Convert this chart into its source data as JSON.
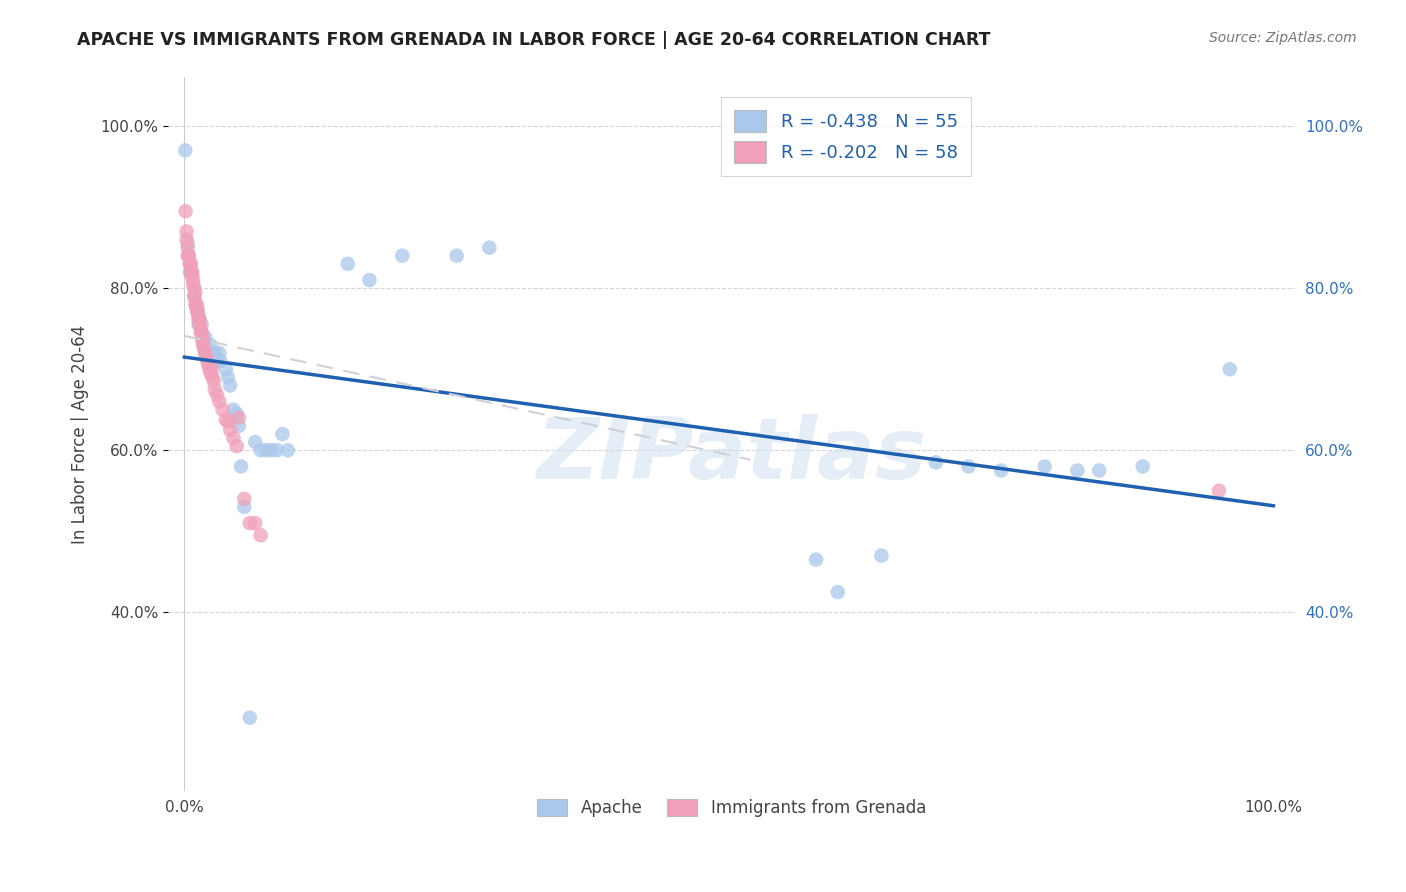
{
  "title": "APACHE VS IMMIGRANTS FROM GRENADA IN LABOR FORCE | AGE 20-64 CORRELATION CHART",
  "source": "Source: ZipAtlas.com",
  "ylabel": "In Labor Force | Age 20-64",
  "watermark": "ZIPatlas",
  "apache_color": "#aac8ea",
  "grenada_color": "#f0a0b8",
  "apache_line_color": "#2060b0",
  "grenada_line_color": "#d0d0d8",
  "apache_scatter": [
    [
      0.0008,
      0.97
    ],
    [
      0.003,
      0.855
    ],
    [
      0.005,
      0.82
    ],
    [
      0.007,
      0.82
    ],
    [
      0.009,
      0.79
    ],
    [
      0.011,
      0.78
    ],
    [
      0.012,
      0.77
    ],
    [
      0.013,
      0.755
    ],
    [
      0.014,
      0.76
    ],
    [
      0.016,
      0.755
    ],
    [
      0.017,
      0.74
    ],
    [
      0.018,
      0.73
    ],
    [
      0.019,
      0.74
    ],
    [
      0.02,
      0.72
    ],
    [
      0.021,
      0.72
    ],
    [
      0.022,
      0.715
    ],
    [
      0.024,
      0.73
    ],
    [
      0.025,
      0.72
    ],
    [
      0.027,
      0.72
    ],
    [
      0.028,
      0.72
    ],
    [
      0.03,
      0.71
    ],
    [
      0.032,
      0.72
    ],
    [
      0.033,
      0.71
    ],
    [
      0.038,
      0.7
    ],
    [
      0.04,
      0.69
    ],
    [
      0.042,
      0.68
    ],
    [
      0.045,
      0.65
    ],
    [
      0.048,
      0.645
    ],
    [
      0.05,
      0.63
    ],
    [
      0.052,
      0.58
    ],
    [
      0.055,
      0.53
    ],
    [
      0.06,
      0.27
    ],
    [
      0.065,
      0.61
    ],
    [
      0.07,
      0.6
    ],
    [
      0.075,
      0.6
    ],
    [
      0.08,
      0.6
    ],
    [
      0.085,
      0.6
    ],
    [
      0.09,
      0.62
    ],
    [
      0.095,
      0.6
    ],
    [
      0.15,
      0.83
    ],
    [
      0.17,
      0.81
    ],
    [
      0.2,
      0.84
    ],
    [
      0.25,
      0.84
    ],
    [
      0.28,
      0.85
    ],
    [
      0.58,
      0.465
    ],
    [
      0.6,
      0.425
    ],
    [
      0.64,
      0.47
    ],
    [
      0.69,
      0.585
    ],
    [
      0.72,
      0.58
    ],
    [
      0.75,
      0.575
    ],
    [
      0.79,
      0.58
    ],
    [
      0.82,
      0.575
    ],
    [
      0.84,
      0.575
    ],
    [
      0.88,
      0.58
    ],
    [
      0.96,
      0.7
    ]
  ],
  "grenada_scatter": [
    [
      0.001,
      0.895
    ],
    [
      0.002,
      0.87
    ],
    [
      0.002,
      0.86
    ],
    [
      0.003,
      0.85
    ],
    [
      0.003,
      0.84
    ],
    [
      0.004,
      0.84
    ],
    [
      0.004,
      0.84
    ],
    [
      0.005,
      0.83
    ],
    [
      0.005,
      0.83
    ],
    [
      0.006,
      0.83
    ],
    [
      0.006,
      0.82
    ],
    [
      0.007,
      0.82
    ],
    [
      0.007,
      0.815
    ],
    [
      0.008,
      0.81
    ],
    [
      0.008,
      0.805
    ],
    [
      0.009,
      0.8
    ],
    [
      0.009,
      0.79
    ],
    [
      0.01,
      0.795
    ],
    [
      0.01,
      0.78
    ],
    [
      0.011,
      0.78
    ],
    [
      0.011,
      0.775
    ],
    [
      0.012,
      0.775
    ],
    [
      0.012,
      0.77
    ],
    [
      0.013,
      0.765
    ],
    [
      0.013,
      0.76
    ],
    [
      0.014,
      0.76
    ],
    [
      0.014,
      0.755
    ],
    [
      0.015,
      0.75
    ],
    [
      0.015,
      0.745
    ],
    [
      0.016,
      0.745
    ],
    [
      0.016,
      0.738
    ],
    [
      0.017,
      0.735
    ],
    [
      0.017,
      0.73
    ],
    [
      0.018,
      0.725
    ],
    [
      0.019,
      0.72
    ],
    [
      0.02,
      0.715
    ],
    [
      0.021,
      0.71
    ],
    [
      0.022,
      0.705
    ],
    [
      0.023,
      0.7
    ],
    [
      0.024,
      0.695
    ],
    [
      0.025,
      0.7
    ],
    [
      0.026,
      0.69
    ],
    [
      0.027,
      0.685
    ],
    [
      0.028,
      0.675
    ],
    [
      0.03,
      0.668
    ],
    [
      0.032,
      0.66
    ],
    [
      0.035,
      0.65
    ],
    [
      0.038,
      0.638
    ],
    [
      0.04,
      0.635
    ],
    [
      0.042,
      0.625
    ],
    [
      0.045,
      0.615
    ],
    [
      0.048,
      0.605
    ],
    [
      0.05,
      0.64
    ],
    [
      0.055,
      0.54
    ],
    [
      0.06,
      0.51
    ],
    [
      0.065,
      0.51
    ],
    [
      0.07,
      0.495
    ],
    [
      0.95,
      0.55
    ]
  ],
  "xlim": [
    -0.015,
    1.02
  ],
  "ylim": [
    0.18,
    1.06
  ],
  "xticks": [
    0.0,
    1.0
  ],
  "xtick_labels": [
    "0.0%",
    "100.0%"
  ],
  "yticks": [
    0.4,
    0.6,
    0.8,
    1.0
  ],
  "ytick_labels_left": [
    "40.0%",
    "60.0%",
    "80.0%",
    "100.0%"
  ],
  "ytick_labels_right": [
    "40.0%",
    "60.0%",
    "80.0%",
    "100.0%"
  ],
  "legend_items": [
    {
      "label": "R = -0.438   N = 55",
      "color": "#aac8ea"
    },
    {
      "label": "R = -0.202   N = 58",
      "color": "#f0a0b8"
    }
  ],
  "bottom_legend": [
    "Apache",
    "Immigrants from Grenada"
  ],
  "background_color": "#ffffff",
  "grid_color": "#d0d0d8"
}
